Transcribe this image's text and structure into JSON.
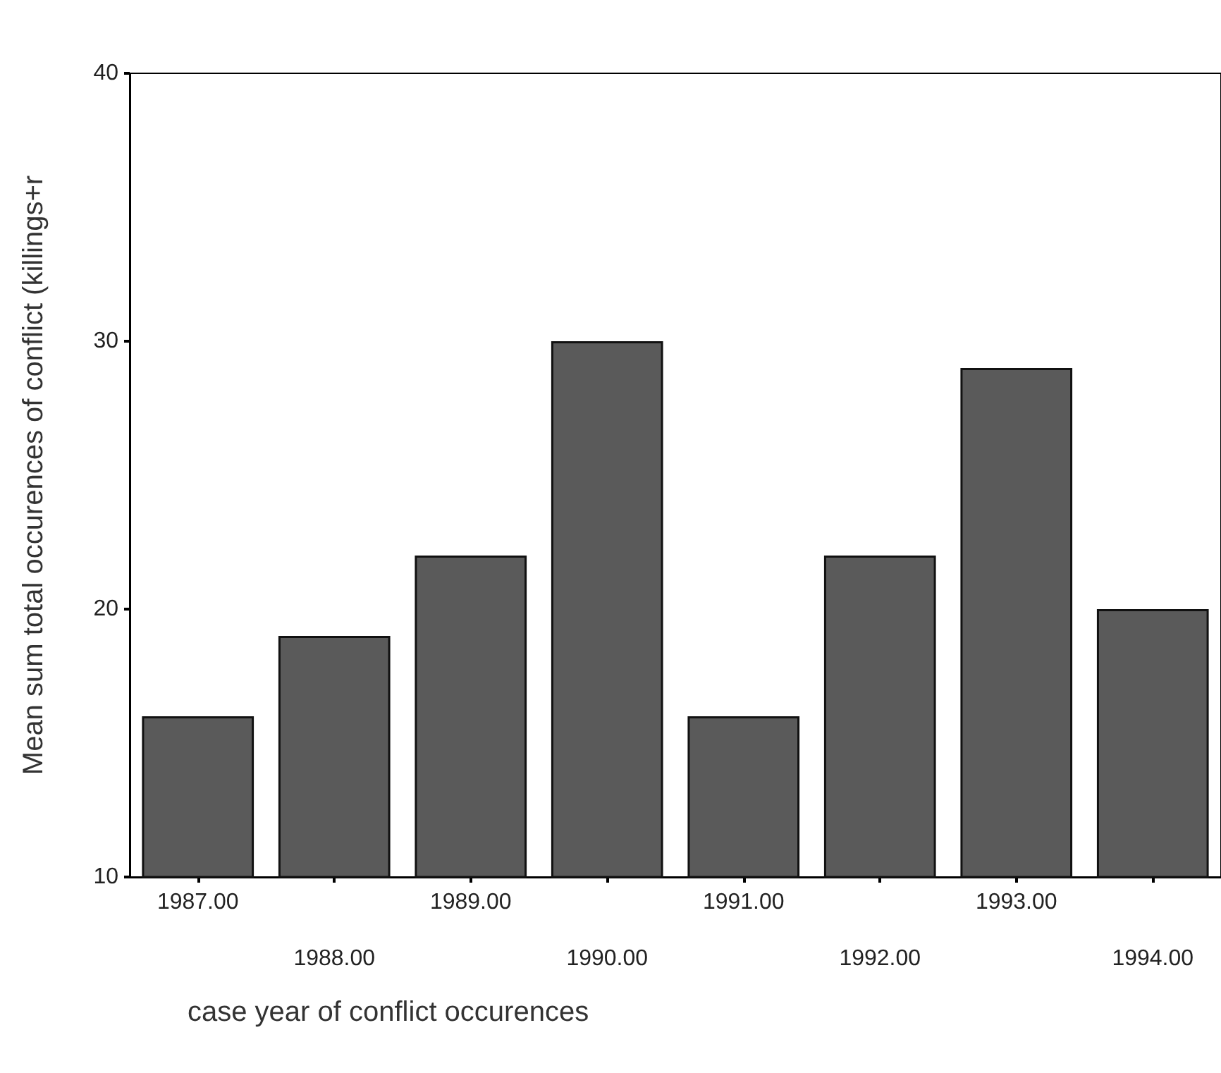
{
  "chart_data": {
    "type": "bar",
    "xlabel": "case year of conflict occurences",
    "ylabel": "Mean sum total occurences of conflict (killings+r",
    "categories": [
      "1987.00",
      "1988.00",
      "1989.00",
      "1990.00",
      "1991.00",
      "1992.00",
      "1993.00",
      "1994.00"
    ],
    "values": [
      16,
      19,
      22,
      30,
      16,
      22,
      29,
      20
    ],
    "color": "#5a5a5a",
    "ylim": [
      10,
      40
    ],
    "yticks": [
      10,
      20,
      30,
      40
    ],
    "grid": false
  }
}
